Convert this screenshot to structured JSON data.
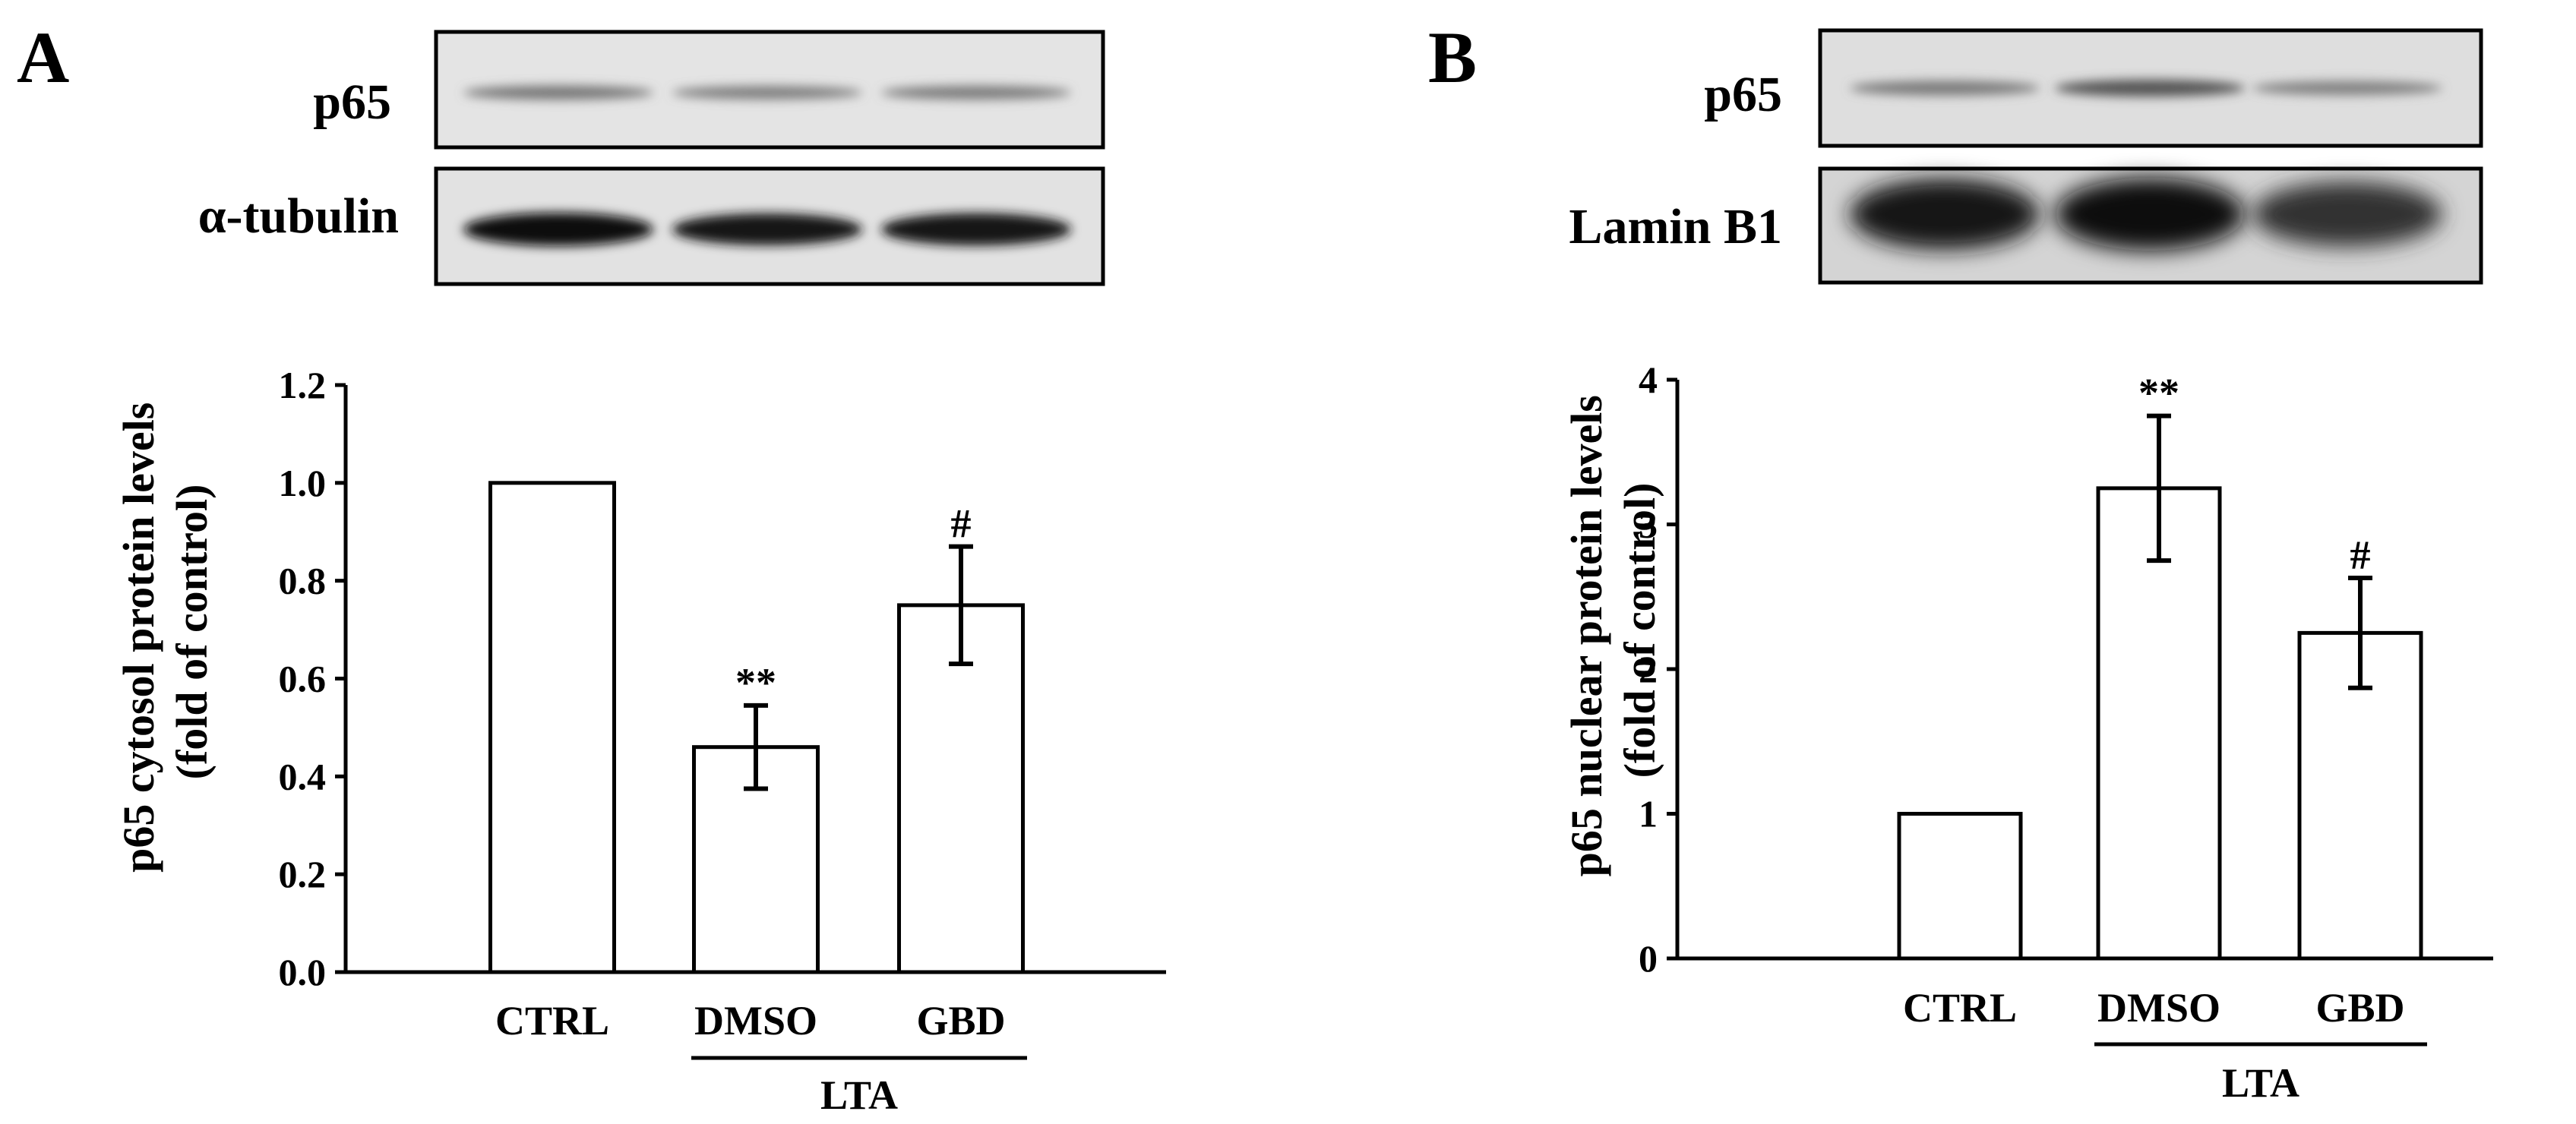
{
  "panels": [
    {
      "letter": "A",
      "blots": [
        {
          "label": "p65",
          "bands": [
            0.45,
            0.4,
            0.42
          ]
        },
        {
          "label": "α-tubulin",
          "bands": [
            1.0,
            0.92,
            0.95
          ]
        }
      ],
      "chart_data": {
        "type": "bar",
        "categories": [
          "CTRL",
          "DMSO",
          "GBD"
        ],
        "values": [
          1.0,
          0.46,
          0.75
        ],
        "errors": [
          0,
          0.085,
          0.12
        ],
        "significance": [
          "",
          "**",
          "#"
        ],
        "ylabel_lines": [
          "p65 cytosol protein levels",
          "(fold of control)"
        ],
        "ylim": [
          0,
          1.2
        ],
        "yticks": [
          "0.0",
          "0.2",
          "0.4",
          "0.6",
          "0.8",
          "1.0",
          "1.2"
        ],
        "group_label": "LTA",
        "grid": false
      }
    },
    {
      "letter": "B",
      "blots": [
        {
          "label": "p65",
          "bands": [
            0.42,
            0.62,
            0.38
          ]
        },
        {
          "label": "Lamin B1",
          "bands": [
            0.95,
            1.0,
            0.8
          ]
        }
      ],
      "chart_data": {
        "type": "bar",
        "categories": [
          "CTRL",
          "DMSO",
          "GBD"
        ],
        "values": [
          1.0,
          3.25,
          2.25
        ],
        "errors": [
          0,
          0.5,
          0.38
        ],
        "significance": [
          "",
          "**",
          "#"
        ],
        "ylabel_lines": [
          "p65 nuclear protein levels",
          "(fold of control)"
        ],
        "ylim": [
          0,
          4
        ],
        "yticks": [
          "0",
          "1",
          "2",
          "3",
          "4"
        ],
        "group_label": "LTA",
        "grid": false
      }
    }
  ]
}
